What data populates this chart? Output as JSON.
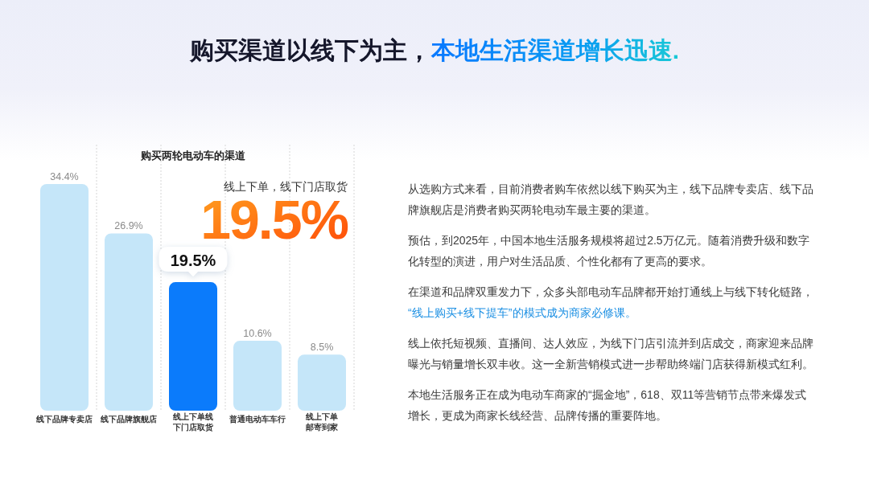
{
  "chart_data": {
    "type": "bar",
    "title": "购买渠道以线下为主，本地生活渠道增长迅速.",
    "subtitle": "购买两轮电动车的渠道",
    "categories": [
      "线下品牌专卖店",
      "线下品牌旗舰店",
      "线上下单线下门店取货",
      "普通电动车车行",
      "线上下单邮寄到家"
    ],
    "values": [
      34.4,
      26.9,
      19.5,
      10.6,
      8.5
    ],
    "colors": [
      "#c5e6f9",
      "#c5e6f9",
      "#0b7bfb",
      "#c5e6f9",
      "#c5e6f9"
    ],
    "value_labels": [
      "34.4%",
      "26.9%",
      "19.5%",
      "10.6%",
      "8.5%"
    ],
    "ylim": [
      0,
      40
    ],
    "tick_labels": "x",
    "grid": "x",
    "annotations": [
      {
        "text": "线上下单，线下门店取货\n19.5%",
        "x": "线上下单线下门店取货",
        "y": 19.5
      },
      "从选购方式来看，目前消费者购车依然以线下购买为主，线下品牌专卖店、线下品牌旗舰店是消费者购买两轮电动车最主要的渠道。",
      "预估，到2025年，中国本地生活服务规模将超过2.5万亿元。随着消费升级和数字化转型的演进，用户对生活品质、个性化都有了更高的要求。",
      "在渠道和品牌双重发力下，众多头部电动车品牌都开始打通线上与线下转化链路，\n“线上购买+线下提车”的模式成为商家必修课。",
      "线上依托短视频、直播间、达人效应，为线下门店引流并到店成交，商家迎来品牌曝光与销量增长双丰收。这一全新营销模式进一步帮助终端门店获得新模式红利。",
      "本地生活服务正在成为电动车商家的“掘金地”，618、双11等营销节点带来爆发式增长，更成为商家长线经营、品牌传播的重要阵地。"
    ]
  }
}
